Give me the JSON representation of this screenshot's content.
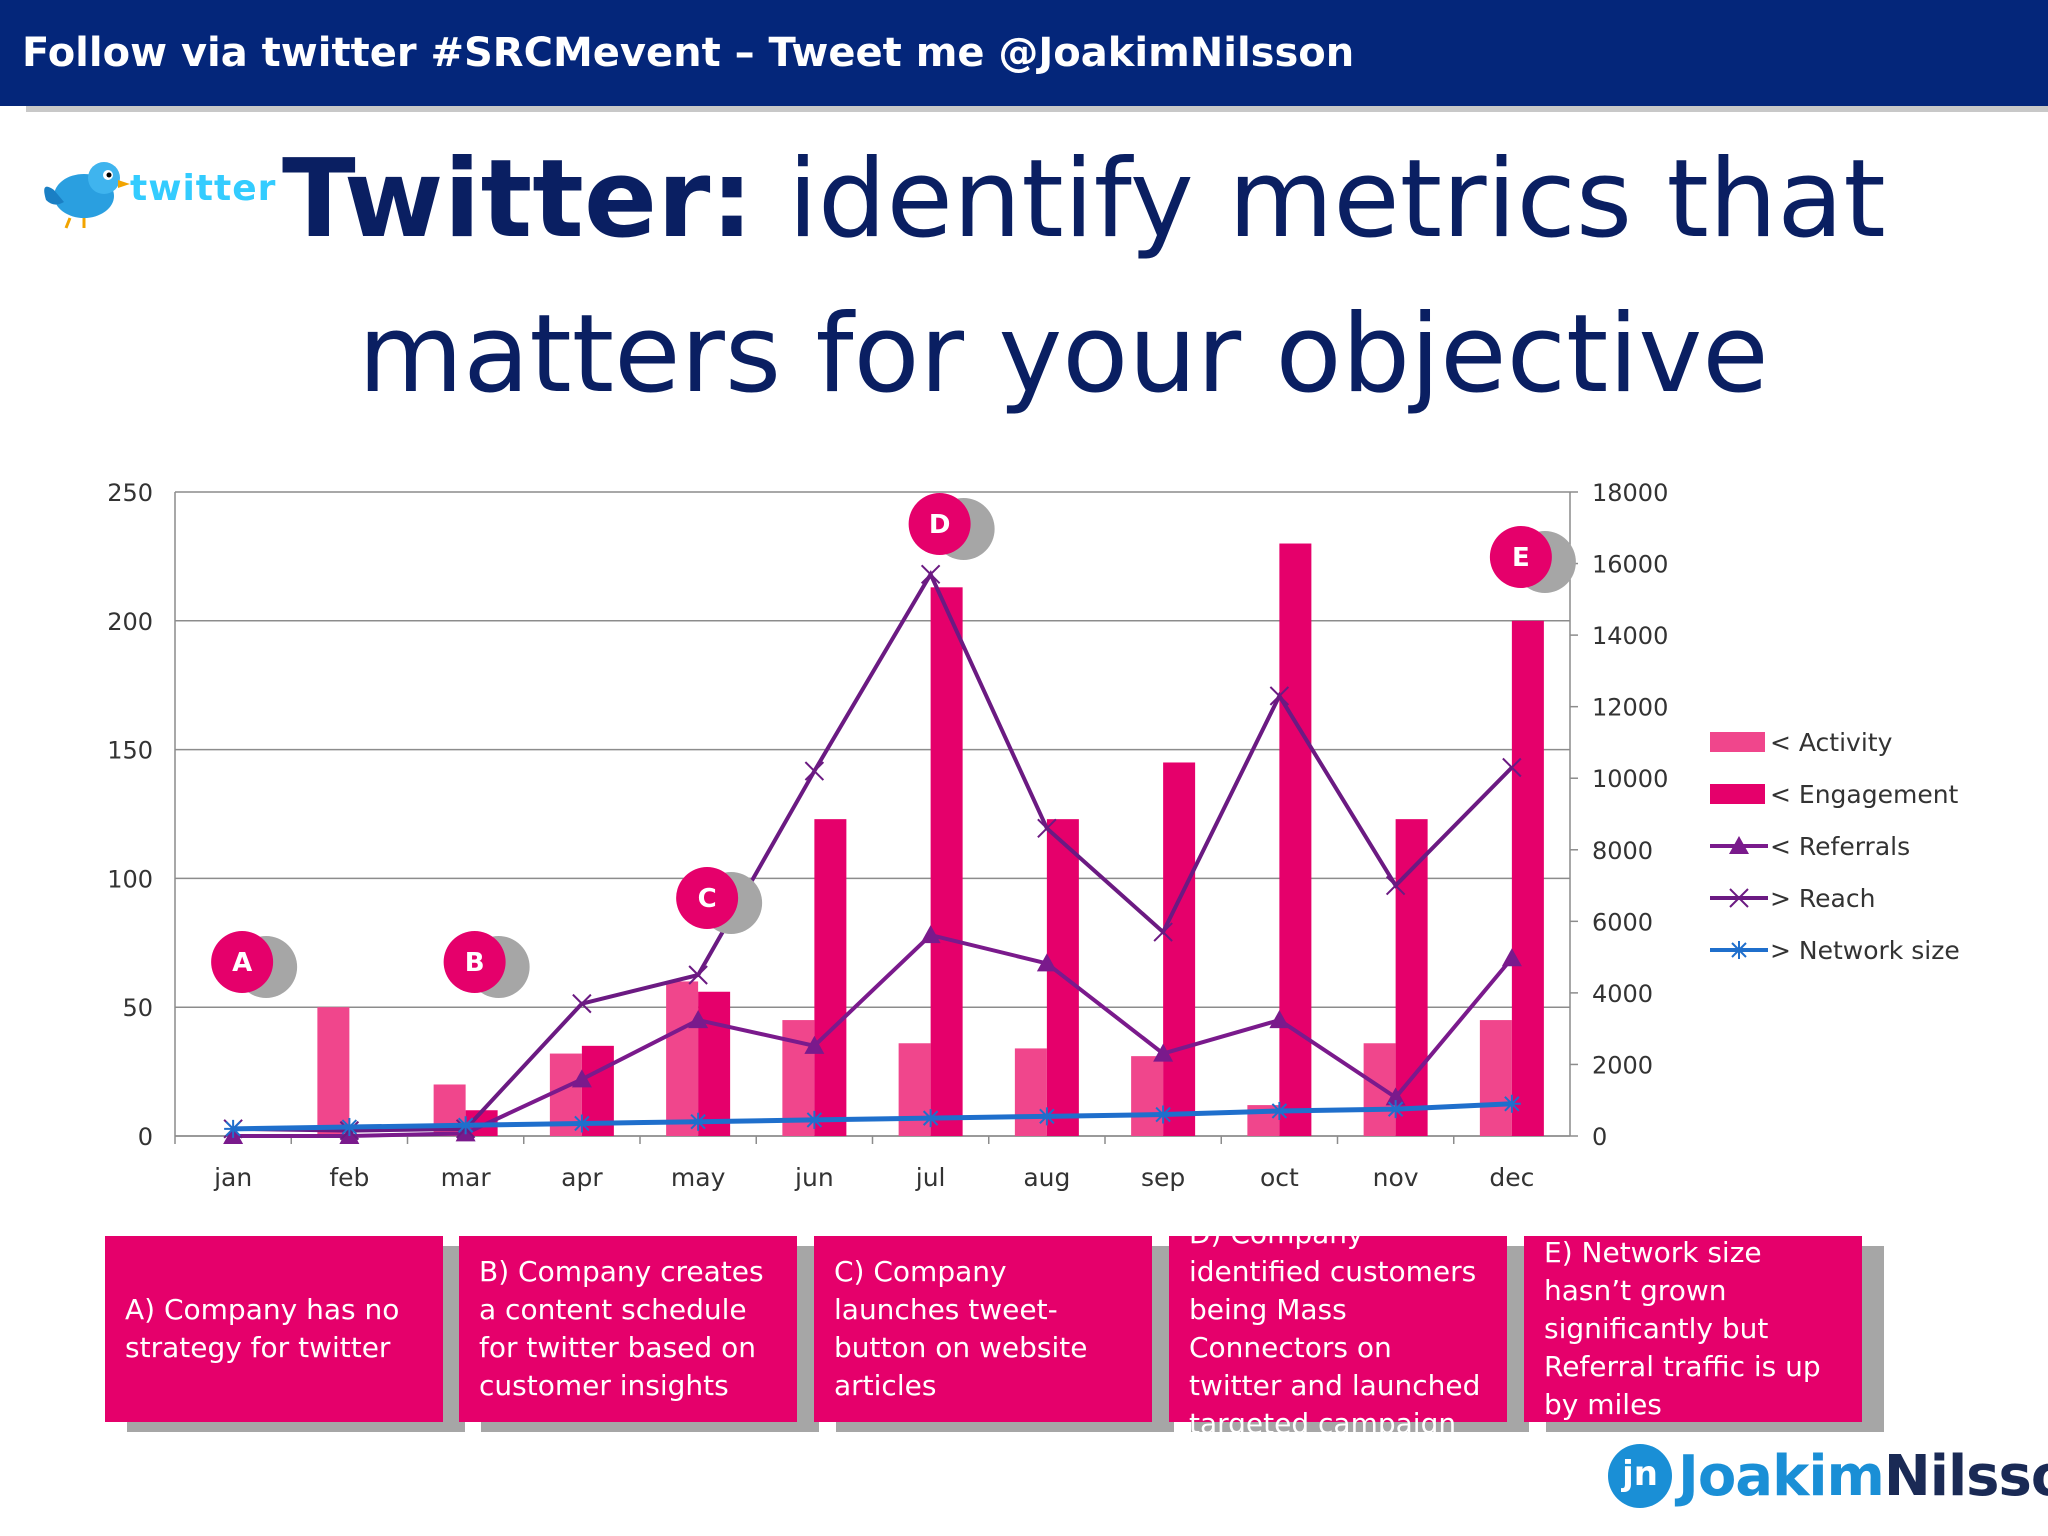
{
  "header": {
    "text": "Follow via twitter #SRCMevent – Tweet me @JoakimNilsson"
  },
  "twitter_logo": {
    "icon": "twitter-bird-icon",
    "word": "twitter"
  },
  "title": {
    "bold": "Twitter:",
    "rest_line1": " identify metrics that",
    "line2": "matters for your objective"
  },
  "chart_data": {
    "type": "bar",
    "categories": [
      "jan",
      "feb",
      "mar",
      "apr",
      "may",
      "jun",
      "jul",
      "aug",
      "sep",
      "oct",
      "nov",
      "dec"
    ],
    "y_left": {
      "ticks": [
        0,
        50,
        100,
        150,
        200,
        250
      ],
      "ylim": [
        0,
        250
      ]
    },
    "y_right": {
      "ticks": [
        0,
        2000,
        4000,
        6000,
        8000,
        10000,
        12000,
        14000,
        16000,
        18000
      ],
      "ylim": [
        0,
        18000
      ]
    },
    "grid": true,
    "legend_position": "right",
    "series": [
      {
        "name": "< Activity",
        "kind": "bar",
        "axis": "left",
        "color": "#f0468c",
        "values": [
          0,
          50,
          20,
          32,
          60,
          45,
          36,
          34,
          31,
          12,
          36,
          45
        ]
      },
      {
        "name": "< Engagement",
        "kind": "bar",
        "axis": "left",
        "color": "#e5006b",
        "values": [
          0,
          0,
          10,
          35,
          56,
          123,
          213,
          123,
          145,
          230,
          123,
          200
        ]
      },
      {
        "name": "< Referrals",
        "kind": "line",
        "axis": "left",
        "marker": "triangle",
        "color": "#7a1a8c",
        "values": [
          0,
          0,
          1,
          22,
          45,
          35,
          78,
          67,
          32,
          45,
          15,
          69
        ]
      },
      {
        "name": "> Reach",
        "kind": "line",
        "axis": "right",
        "marker": "x",
        "color": "#6b1a82",
        "values": [
          200,
          150,
          200,
          3700,
          4500,
          10200,
          15700,
          8600,
          5700,
          12300,
          7000,
          10300
        ]
      },
      {
        "name": "> Network size",
        "kind": "line",
        "axis": "right",
        "marker": "star",
        "color": "#1f6fcc",
        "values": [
          200,
          250,
          300,
          350,
          400,
          450,
          500,
          550,
          600,
          700,
          750,
          900
        ]
      }
    ],
    "event_markers": [
      {
        "label": "A",
        "month": "jan"
      },
      {
        "label": "B",
        "month": "mar"
      },
      {
        "label": "C",
        "month": "may"
      },
      {
        "label": "D",
        "month": "jul"
      },
      {
        "label": "E",
        "month": "dec"
      }
    ]
  },
  "boxes": [
    {
      "text": "A) Company has no strategy for twitter"
    },
    {
      "text": "B) Company creates a content schedule for twitter based on customer insights"
    },
    {
      "text": "C) Company launches tweet-button on website articles"
    },
    {
      "text": "D) Company identified customers being Mass Connectors on twitter and launched targeted campaign"
    },
    {
      "text": "E)  Network size hasn’t grown significantly but Referral traffic is up by miles"
    }
  ],
  "footer_logo": {
    "icon_letter": "jn",
    "first": "Joakim",
    "last": "Nilsson"
  },
  "colors": {
    "header_bg": "#04267a",
    "title": "#0a1f62",
    "accent": "#e5006b"
  }
}
